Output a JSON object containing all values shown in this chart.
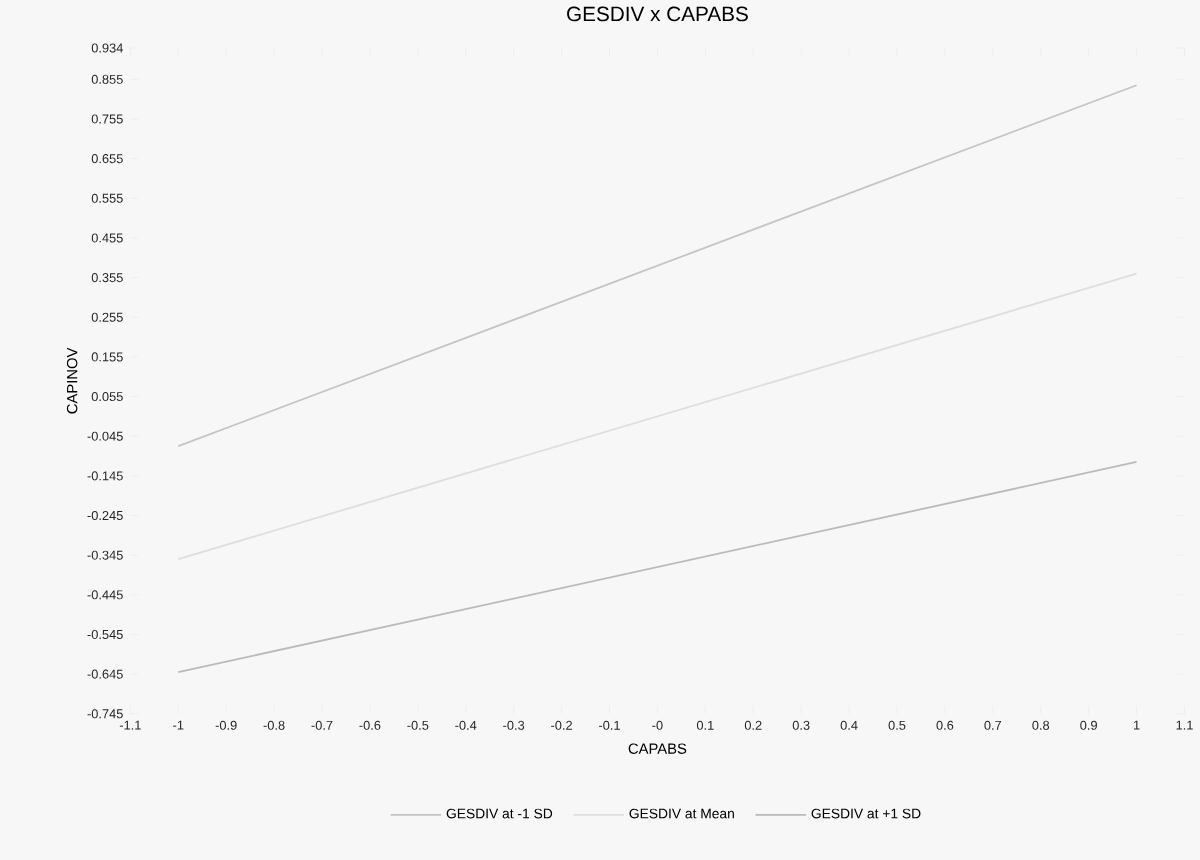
{
  "chart_data": {
    "type": "line",
    "title": "GESDIV x CAPABS",
    "xlabel": "CAPABS",
    "ylabel": "CAPINOV",
    "x": [
      -1,
      1
    ],
    "series": [
      {
        "name": "GESDIV at -1 SD",
        "color": "#c4c4c4",
        "values": [
          -0.07,
          0.84
        ]
      },
      {
        "name": "GESDIV at Mean",
        "color": "#dedede",
        "values": [
          -0.355,
          0.365
        ]
      },
      {
        "name": "GESDIV at +1 SD",
        "color": "#bababa",
        "values": [
          -0.64,
          -0.11
        ]
      }
    ],
    "xlim": [
      -1.1,
      1.1
    ],
    "xticks": [
      -1.1,
      -1,
      -0.9,
      -0.8,
      -0.7,
      -0.6,
      -0.5,
      -0.4,
      -0.3,
      -0.2,
      -0.1,
      {
        "value": 0,
        "label": "-0"
      },
      0.1,
      0.2,
      0.3,
      0.4,
      0.5,
      0.6,
      0.7,
      0.8,
      0.9,
      1,
      1.1
    ],
    "ylim": [
      -0.745,
      0.934
    ],
    "yticks": [
      -0.745,
      -0.645,
      -0.545,
      -0.445,
      -0.345,
      -0.245,
      -0.145,
      -0.045,
      0.055,
      0.155,
      0.255,
      0.355,
      0.455,
      0.555,
      0.655,
      0.755,
      0.855,
      0.934
    ],
    "legend": "bottom",
    "marker": "none",
    "line_style": "solid"
  }
}
